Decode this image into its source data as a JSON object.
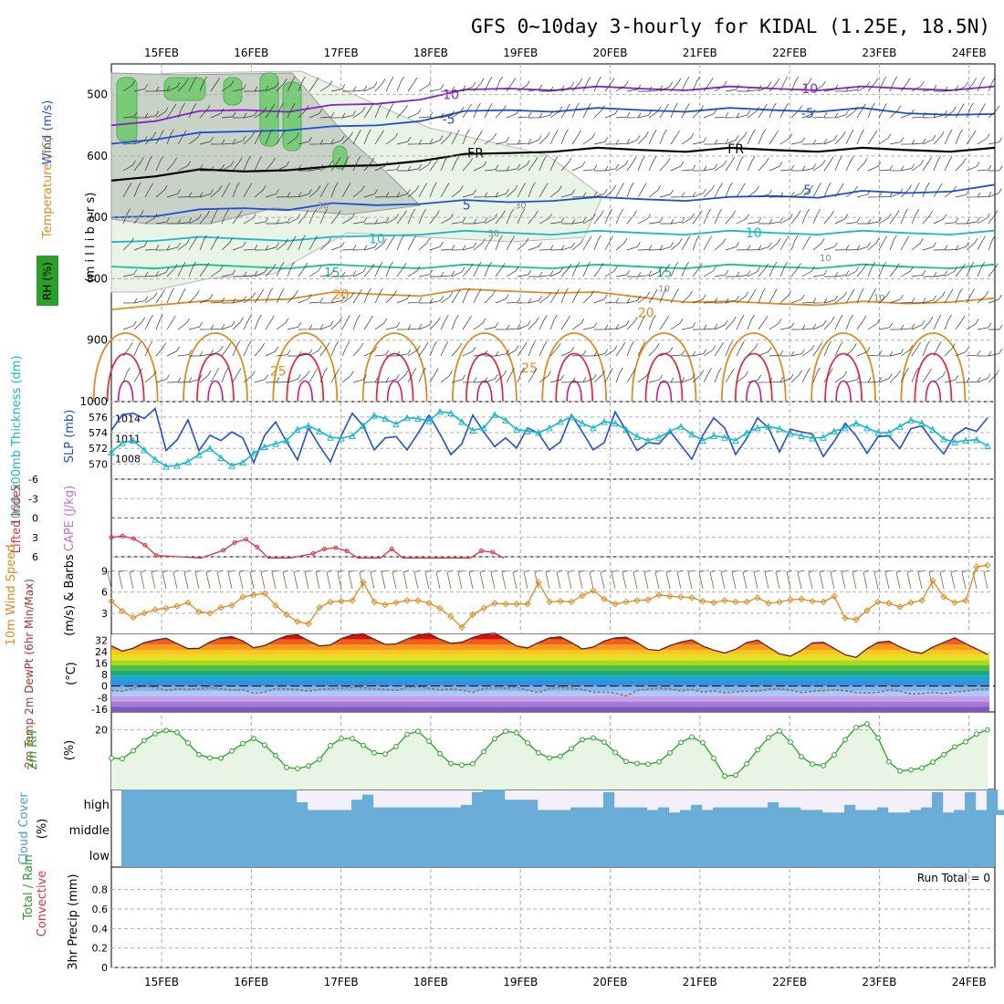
{
  "title": "GFS 0~10day 3-hourly for KIDAL (1.25E, 18.5N)",
  "dates": [
    "15FEB",
    "16FEB",
    "17FEB",
    "18FEB",
    "19FEB",
    "20FEB",
    "21FEB",
    "22FEB",
    "23FEB",
    "24FEB"
  ],
  "colors": {
    "purple": "#8a1fc8",
    "blue": "#1f4fd8",
    "cyan": "#18b8c8",
    "teal": "#18c090",
    "orange": "#e08a20",
    "red": "#e03040",
    "magenta": "#c81890",
    "green_rh": "#2aa02a",
    "cloud": "#6aaed8",
    "cloud_bg": "#f4f0fa",
    "grid": "#a0a0a0"
  },
  "chart_data": [
    {
      "panel": "upper-air",
      "type": "contour",
      "ylabel_left": "(m i l l i b a r s)",
      "ylabels_side": [
        "Wind (m/s)",
        "Temperature (°C)",
        "RH (%)"
      ],
      "y_ticks": [
        500,
        600,
        700,
        800,
        900,
        1000
      ],
      "ylim": [
        450,
        1000
      ],
      "temperature_contours": [
        {
          "label": "-10",
          "color": "purple",
          "p": [
            550,
            540,
            530,
            525,
            525,
            520,
            515,
            505,
            495,
            490,
            490,
            490,
            490,
            490,
            490,
            490,
            490,
            490,
            490,
            490,
            490
          ]
        },
        {
          "label": "-5",
          "color": "blue",
          "p": [
            580,
            570,
            565,
            560,
            555,
            555,
            550,
            540,
            530,
            525,
            525,
            525,
            525,
            525,
            525,
            525,
            525,
            525,
            530,
            530,
            535
          ]
        },
        {
          "label": "FR",
          "color": "black",
          "p": [
            640,
            630,
            625,
            625,
            620,
            620,
            615,
            605,
            600,
            595,
            590,
            590,
            590,
            590,
            590,
            590,
            590,
            590,
            590,
            590,
            590
          ]
        },
        {
          "label": "5",
          "color": "blue",
          "p": [
            700,
            695,
            690,
            685,
            685,
            680,
            680,
            675,
            675,
            675,
            670,
            670,
            670,
            670,
            670,
            665,
            665,
            660,
            660,
            655,
            650
          ]
        },
        {
          "label": "10",
          "color": "cyan",
          "p": [
            740,
            735,
            735,
            735,
            735,
            735,
            730,
            725,
            725,
            725,
            725,
            725,
            725,
            725,
            725,
            725,
            725,
            725,
            725,
            725,
            725
          ]
        },
        {
          "label": "15",
          "color": "teal",
          "p": [
            780,
            780,
            780,
            780,
            780,
            780,
            780,
            780,
            780,
            780,
            780,
            780,
            780,
            780,
            780,
            780,
            780,
            780,
            780,
            780,
            780
          ]
        },
        {
          "label": "20",
          "color": "orange",
          "p": [
            850,
            840,
            840,
            835,
            830,
            825,
            825,
            825,
            820,
            820,
            820,
            825,
            830,
            835,
            840,
            840,
            840,
            840,
            840,
            835,
            835
          ]
        }
      ],
      "contour_labels": [
        {
          "text": "-10",
          "x": 3.2,
          "p": 500
        },
        {
          "text": "-10",
          "x": 7.2,
          "p": 490
        },
        {
          "text": "-5",
          "x": 3.2,
          "p": 540
        },
        {
          "text": "-5",
          "x": 7.2,
          "p": 530
        },
        {
          "text": "FR",
          "x": 3.5,
          "p": 595
        },
        {
          "text": "FR",
          "x": 6.4,
          "p": 588
        },
        {
          "text": "5",
          "x": 3.4,
          "p": 680
        },
        {
          "text": "5",
          "x": 7.2,
          "p": 655
        },
        {
          "text": "10",
          "x": 2.4,
          "p": 735
        },
        {
          "text": "10",
          "x": 6.6,
          "p": 725
        },
        {
          "text": "15",
          "x": 1.9,
          "p": 790
        },
        {
          "text": "15",
          "x": 5.6,
          "p": 790
        },
        {
          "text": "20",
          "x": 2.0,
          "p": 825
        },
        {
          "text": "20",
          "x": 5.4,
          "p": 855
        },
        {
          "text": "25",
          "x": 1.3,
          "p": 950
        },
        {
          "text": "25",
          "x": 4.1,
          "p": 945
        }
      ],
      "rh_labels": [
        {
          "text": "30",
          "x": 1.8,
          "p": 680
        },
        {
          "text": "30",
          "x": 4.0,
          "p": 680
        },
        {
          "text": "30",
          "x": 3.7,
          "p": 725
        },
        {
          "text": "10",
          "x": 5.6,
          "p": 815
        },
        {
          "text": "10",
          "x": 8.0,
          "p": 830
        },
        {
          "text": "10",
          "x": 7.4,
          "p": 765
        }
      ]
    },
    {
      "panel": "thickness-slp",
      "type": "line",
      "ylabel_left": "1000-500mb Thickness (dm)",
      "ylabel_right": "SLP (mb)",
      "left_ticks": [
        570,
        572,
        574,
        576
      ],
      "right_ticks": [
        1008,
        1011,
        1014
      ],
      "series": [
        {
          "name": "SLP",
          "color": "blue",
          "axis": "right",
          "values": [
            1012.2,
            1014.6,
            1014.8,
            1014.0,
            1015.5,
            1009.2,
            1010.8,
            1013.8,
            1009.2,
            1011.5,
            1010.7,
            1012.0,
            1011.1,
            1007.4,
            1011.5,
            1013.5,
            1010.5,
            1007.8,
            1012.6,
            1009.9,
            1007.5,
            1011.5,
            1014.8,
            1012.9,
            1009.3,
            1011.1,
            1011.3,
            1009.3,
            1011.8,
            1014.5,
            1011.7,
            1008.6,
            1010.2,
            1014.5,
            1012.0,
            1009.8,
            1011.1,
            1009.6,
            1012.6,
            1011.8,
            1009.3,
            1010.5,
            1014.6,
            1012.0,
            1009.3,
            1010.4,
            1015.0,
            1012.2,
            1009.2,
            1010.4,
            1010.2,
            1012.1,
            1010.0,
            1007.9,
            1011.5,
            1014.1,
            1012.6,
            1008.6,
            1011.0,
            1014.1,
            1012.6,
            1009.0,
            1012.4,
            1012.0,
            1011.7,
            1008.3,
            1010.6,
            1013.3,
            1011.4,
            1008.8,
            1011.3,
            1011.4,
            1009.5,
            1012.5,
            1012.9,
            1010.6,
            1008.7,
            1011.5,
            1012.6,
            1012.1,
            1014.1
          ]
        },
        {
          "name": "Thickness",
          "color": "cyan",
          "axis": "left",
          "values": [
            571.5,
            572.7,
            573.0,
            571.8,
            570.6,
            569.7,
            569.8,
            570.3,
            571.2,
            572.0,
            570.8,
            569.8,
            570.2,
            571.4,
            572.2,
            572.6,
            573.0,
            574.4,
            574.9,
            574.2,
            573.4,
            573.3,
            573.6,
            574.9,
            576.2,
            575.8,
            575.1,
            575.9,
            575.8,
            575.5,
            576.7,
            576.5,
            575.4,
            574.3,
            574.6,
            576.3,
            575.6,
            574.4,
            574.2,
            574.0,
            574.6,
            575.4,
            576.0,
            575.2,
            574.6,
            575.4,
            575.2,
            574.4,
            573.5,
            573.0,
            573.4,
            574.2,
            574.8,
            573.8,
            573.0,
            573.6,
            573.4,
            573.0,
            574.0,
            574.6,
            574.8,
            574.5,
            573.9,
            573.6,
            573.3,
            573.4,
            574.2,
            574.6,
            575.2,
            574.6,
            574.0,
            574.0,
            574.8,
            575.6,
            575.2,
            574.4,
            573.2,
            572.8,
            573.0,
            573.1,
            572.3
          ]
        }
      ]
    },
    {
      "panel": "lifted-index-cape",
      "type": "line",
      "ylabel_left": "Lifted Index",
      "ylabel_right": "CAPE (J/kg)",
      "y_ticks": [
        -6,
        -3,
        0,
        3,
        6
      ],
      "series": [
        {
          "name": "Lifted Index",
          "color": "red",
          "points": [
            [
              0,
              3.0
            ],
            [
              0.125,
              2.8
            ],
            [
              0.25,
              3.2
            ],
            [
              0.375,
              4.2
            ],
            [
              0.5,
              5.8
            ],
            [
              1.0,
              6.2
            ],
            [
              1.25,
              5.0
            ],
            [
              1.375,
              3.8
            ],
            [
              1.5,
              3.3
            ],
            [
              1.625,
              4.5
            ],
            [
              1.75,
              6.2
            ],
            [
              2.0,
              6.2
            ],
            [
              2.25,
              5.5
            ],
            [
              2.375,
              4.8
            ],
            [
              2.5,
              4.6
            ],
            [
              2.625,
              5.1
            ],
            [
              2.75,
              6.2
            ],
            [
              3.0,
              6.2
            ],
            [
              3.125,
              4.8
            ],
            [
              3.25,
              6.2
            ],
            [
              4.0,
              6.2
            ],
            [
              4.125,
              5.1
            ],
            [
              4.25,
              5.3
            ],
            [
              4.375,
              6.2
            ]
          ]
        }
      ]
    },
    {
      "panel": "wind-10m",
      "type": "line",
      "ylabel_left": "10m Wind Speed",
      "ylabel_right": "(m/s) & Barbs",
      "y_ticks": [
        3,
        6,
        9
      ],
      "series": [
        {
          "name": "Speed",
          "color": "orange",
          "values": [
            4.7,
            3.3,
            2.4,
            3.0,
            3.5,
            3.7,
            4.0,
            4.5,
            3.2,
            3.0,
            3.8,
            4.1,
            5.3,
            5.6,
            5.8,
            4.1,
            2.8,
            1.8,
            1.5,
            3.8,
            4.6,
            4.7,
            4.8,
            7.4,
            4.6,
            4.2,
            4.5,
            4.8,
            4.8,
            4.4,
            3.7,
            2.5,
            1.0,
            2.8,
            3.7,
            4.4,
            4.3,
            4.3,
            4.3,
            7.4,
            4.6,
            4.7,
            4.6,
            5.5,
            6.2,
            5.0,
            4.3,
            4.6,
            4.8,
            4.9,
            5.6,
            5.4,
            5.3,
            5.2,
            4.7,
            4.5,
            4.8,
            4.6,
            4.6,
            5.2,
            4.4,
            4.6,
            4.9,
            5.0,
            4.7,
            4.6,
            5.4,
            2.3,
            2.1,
            3.4,
            4.6,
            4.4,
            3.9,
            4.5,
            4.8,
            7.6,
            5.3,
            4.5,
            4.8,
            9.6,
            9.8
          ]
        }
      ]
    },
    {
      "panel": "temp-dewpoint",
      "type": "area",
      "ylabel_left": "2m Temp 2m DewPt (6hr Min/Max)",
      "ylabel_right": "(°C)",
      "y_ticks": [
        32,
        24,
        16,
        8,
        0,
        -8,
        -16
      ],
      "series": [
        {
          "name": "2m Temp",
          "color": "black",
          "values": [
            28.0,
            24.3,
            26.4,
            30.2,
            32.0,
            33.3,
            29.5,
            26.0,
            26.3,
            30.6,
            33.6,
            34.4,
            31.4,
            26.6,
            28.2,
            32.0,
            35.0,
            35.6,
            31.6,
            27.9,
            28.6,
            33.0,
            35.6,
            36.4,
            32.6,
            29.0,
            29.3,
            32.7,
            35.4,
            36.6,
            32.6,
            29.7,
            30.5,
            33.8,
            36.0,
            36.8,
            32.6,
            27.8,
            26.6,
            30.2,
            33.5,
            34.2,
            30.3,
            25.8,
            27.2,
            31.3,
            33.5,
            34.0,
            30.3,
            25.5,
            24.8,
            28.1,
            30.6,
            32.2,
            27.8,
            25.0,
            23.0,
            25.6,
            30.2,
            32.0,
            27.1,
            22.4,
            20.8,
            24.8,
            30.0,
            30.5,
            26.2,
            21.8,
            20.0,
            26.0,
            30.5,
            31.2,
            27.3,
            24.0,
            22.8,
            27.2,
            30.4,
            33.6,
            29.5,
            25.8,
            22.0
          ]
        },
        {
          "name": "2m DewPt",
          "color": "brown",
          "values": [
            -3.0,
            -3.6,
            -1.5,
            0.0,
            -1.0,
            -3.0,
            -2.0,
            -2.4,
            -2.0,
            -1.0,
            -2.0,
            -3.0,
            -2.5,
            -5.0,
            -4.2,
            -1.8,
            -2.0,
            -2.5,
            -3.5,
            -2.4,
            -1.8,
            -1.5,
            -1.0,
            -1.2,
            -2.0,
            -2.4,
            -3.0,
            -1.0,
            -0.5,
            -1.5,
            -2.6,
            -2.0,
            -2.8,
            -4.4,
            -1.8,
            -1.2,
            -1.4,
            -1.0,
            -2.8,
            -4.6,
            -1.6,
            -1.0,
            -1.4,
            -2.4,
            -4.2,
            -4.2,
            -4.8,
            -6.8,
            -3.0,
            -2.2,
            -1.5,
            -1.8,
            -3.4,
            -2.4,
            -4.2,
            -3.5,
            -4.5,
            -4.0,
            -3.6,
            -3.6,
            -2.2,
            -1.8,
            -2.8,
            -4.5,
            -3.6,
            -3.2,
            -2.8,
            -3.2,
            -4.4,
            -4.8,
            -4.4,
            -2.8,
            -3.6,
            -5.4,
            -5.2,
            -4.4,
            -5.2,
            -4.0,
            -3.5,
            -2.4,
            -2.0
          ]
        }
      ]
    },
    {
      "panel": "rh-2m",
      "type": "line",
      "ylabel_left": "2m RH",
      "ylabel_right": "(%)",
      "y_ticks": [
        20
      ],
      "ylim": [
        0,
        26
      ],
      "series": [
        {
          "name": "2m RH",
          "color": "green_rh",
          "values": [
            10.5,
            10.3,
            13.0,
            16.4,
            18.7,
            19.8,
            19.1,
            15.6,
            11.7,
            10.6,
            10.5,
            12.9,
            15.4,
            17.1,
            14.9,
            11.4,
            7.4,
            7.0,
            7.9,
            10.1,
            14.7,
            17.1,
            17.1,
            14.8,
            12.3,
            11.9,
            14.4,
            18.5,
            19.5,
            16.2,
            12.0,
            8.7,
            8.2,
            8.6,
            12.7,
            17.0,
            19.5,
            19.0,
            15.6,
            12.3,
            10.6,
            11.1,
            13.7,
            16.7,
            17.3,
            15.9,
            12.4,
            9.4,
            8.7,
            8.5,
            9.3,
            12.3,
            15.8,
            17.6,
            15.7,
            10.5,
            4.5,
            4.8,
            8.6,
            13.3,
            17.4,
            19.6,
            15.9,
            11.0,
            8.5,
            8.0,
            11.6,
            16.7,
            20.8,
            22.0,
            17.3,
            9.3,
            6.2,
            6.6,
            7.2,
            9.2,
            11.7,
            14.3,
            16.0,
            18.6,
            20.0
          ]
        }
      ]
    },
    {
      "panel": "cloud-cover",
      "type": "heatmap",
      "ylabel_left": "Cloud Cover",
      "ylabel_right": "(%)",
      "levels": [
        "high",
        "middle",
        "low"
      ]
    },
    {
      "panel": "precip-3hr",
      "type": "bar",
      "ylabel_left": "Total / Rain",
      "ylabel_left2": "Convective",
      "ylabel_right": "3hr Precip (mm)",
      "y_ticks": [
        0,
        0.2,
        0.4,
        0.6,
        0.8
      ],
      "ylim": [
        0,
        1
      ],
      "annotation": "Run Total = 0"
    }
  ]
}
